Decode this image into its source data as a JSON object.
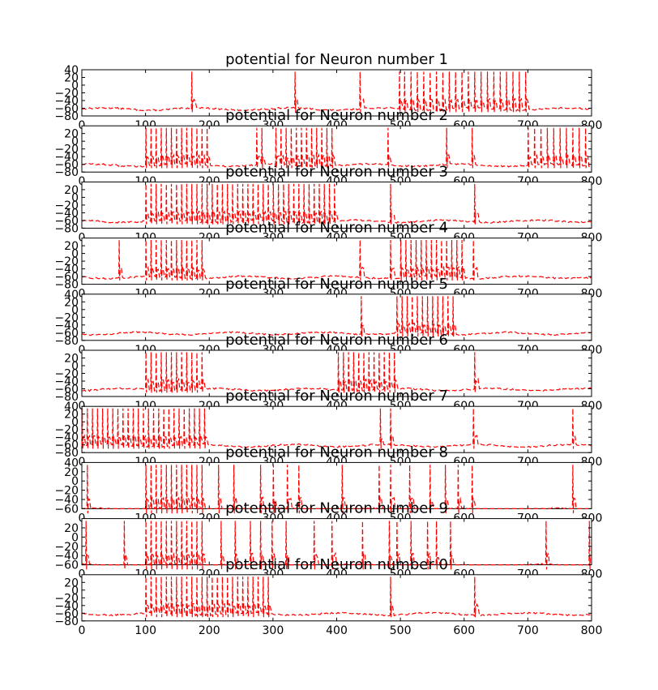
{
  "chart_data": [
    {
      "type": "line",
      "title": "potential for Neuron number 1",
      "xlim": [
        0,
        800
      ],
      "ylim": [
        -80,
        40
      ],
      "xticks": [
        0,
        100,
        200,
        300,
        400,
        500,
        600,
        700,
        800
      ],
      "yticks": [
        -80,
        -60,
        -40,
        -20,
        0,
        20,
        40
      ],
      "color": "#ff0000",
      "spike_times": [
        173,
        334,
        437,
        498,
        506,
        516,
        526,
        536,
        546,
        556,
        566,
        576,
        586,
        596,
        606,
        616,
        626,
        636,
        646,
        656,
        666,
        676,
        686,
        696
      ]
    },
    {
      "type": "line",
      "title": "potential for Neuron number 2",
      "xlim": [
        0,
        800
      ],
      "ylim": [
        -80,
        40
      ],
      "xticks": [
        0,
        100,
        200,
        300,
        400,
        500,
        600,
        700,
        800
      ],
      "yticks": [
        -80,
        -60,
        -40,
        -20,
        0,
        20
      ],
      "color": "#ff0000",
      "spike_times": [
        100,
        108,
        116,
        124,
        132,
        140,
        148,
        156,
        164,
        172,
        180,
        188,
        196,
        275,
        282,
        305,
        312,
        320,
        328,
        336,
        344,
        352,
        360,
        368,
        376,
        384,
        392,
        480,
        572,
        612,
        700,
        710,
        720,
        730,
        740,
        750,
        760,
        770,
        780,
        790
      ]
    },
    {
      "type": "line",
      "title": "potential for Neuron number 3",
      "xlim": [
        0,
        800
      ],
      "ylim": [
        -80,
        40
      ],
      "xticks": [
        0,
        100,
        200,
        300,
        400,
        500,
        600,
        700,
        800
      ],
      "yticks": [
        -80,
        -60,
        -40,
        -20,
        0,
        20
      ],
      "color": "#ff0000",
      "spike_times": [
        100,
        108,
        116,
        124,
        132,
        140,
        148,
        156,
        164,
        172,
        180,
        188,
        196,
        204,
        212,
        220,
        228,
        236,
        244,
        252,
        260,
        268,
        276,
        284,
        292,
        300,
        308,
        316,
        324,
        332,
        340,
        348,
        356,
        364,
        372,
        380,
        388,
        396,
        485,
        617
      ]
    },
    {
      "type": "line",
      "title": "potential for Neuron number 4",
      "xlim": [
        0,
        800
      ],
      "ylim": [
        -80,
        40
      ],
      "xticks": [
        0,
        100,
        200,
        300,
        400,
        500,
        600,
        700,
        800
      ],
      "yticks": [
        -80,
        -60,
        -40,
        -20,
        0,
        20
      ],
      "color": "#ff0000",
      "spike_times": [
        58,
        100,
        108,
        116,
        124,
        132,
        140,
        148,
        156,
        164,
        172,
        180,
        188,
        437,
        485,
        500,
        508,
        516,
        524,
        532,
        540,
        548,
        556,
        564,
        572,
        580,
        588,
        596,
        615
      ]
    },
    {
      "type": "line",
      "title": "potential for Neuron number 5",
      "xlim": [
        0,
        800
      ],
      "ylim": [
        -80,
        40
      ],
      "xticks": [
        0,
        100,
        200,
        300,
        400,
        500,
        600,
        700,
        800
      ],
      "yticks": [
        -80,
        -60,
        -40,
        -20,
        0,
        20,
        40
      ],
      "color": "#ff0000",
      "spike_times": [
        438,
        494,
        502,
        510,
        518,
        526,
        534,
        542,
        550,
        558,
        566,
        574,
        582
      ]
    },
    {
      "type": "line",
      "title": "potential for Neuron number 6",
      "xlim": [
        0,
        800
      ],
      "ylim": [
        -80,
        40
      ],
      "xticks": [
        0,
        100,
        200,
        300,
        400,
        500,
        600,
        700,
        800
      ],
      "yticks": [
        -80,
        -60,
        -40,
        -20,
        0,
        20
      ],
      "color": "#ff0000",
      "spike_times": [
        100,
        108,
        116,
        124,
        132,
        140,
        148,
        156,
        164,
        172,
        180,
        188,
        402,
        410,
        418,
        426,
        434,
        442,
        450,
        458,
        466,
        474,
        482,
        490,
        617
      ]
    },
    {
      "type": "line",
      "title": "potential for Neuron number 7",
      "xlim": [
        0,
        800
      ],
      "ylim": [
        -80,
        40
      ],
      "xticks": [
        0,
        100,
        200,
        300,
        400,
        500,
        600,
        700,
        800
      ],
      "yticks": [
        -80,
        -60,
        -40,
        -20,
        0,
        20,
        40
      ],
      "color": "#ff0000",
      "spike_times": [
        0,
        8,
        16,
        24,
        32,
        40,
        48,
        56,
        64,
        72,
        80,
        88,
        96,
        104,
        112,
        120,
        128,
        136,
        144,
        152,
        160,
        168,
        176,
        184,
        192,
        468,
        484,
        615,
        770
      ]
    },
    {
      "type": "line",
      "title": "potential for Neuron number 8",
      "xlim": [
        0,
        800
      ],
      "ylim": [
        -60,
        40
      ],
      "xticks": [
        0,
        100,
        200,
        300,
        400,
        500,
        600,
        700,
        800
      ],
      "yticks": [
        -60,
        -40,
        -20,
        0,
        20,
        40
      ],
      "color": "#ff0000",
      "spike_times": [
        8,
        100,
        108,
        116,
        124,
        132,
        140,
        148,
        156,
        164,
        172,
        180,
        188,
        214,
        238,
        280,
        300,
        323,
        340,
        408,
        466,
        485,
        515,
        546,
        570,
        590,
        612,
        770
      ]
    },
    {
      "type": "line",
      "title": "potential for Neuron number 9",
      "xlim": [
        0,
        800
      ],
      "ylim": [
        -60,
        40
      ],
      "xticks": [
        0,
        100,
        200,
        300,
        400,
        500,
        600,
        700,
        800
      ],
      "yticks": [
        -60,
        -40,
        -20,
        0,
        20
      ],
      "color": "#ff0000",
      "spike_times": [
        6,
        66,
        100,
        108,
        116,
        124,
        132,
        140,
        148,
        156,
        164,
        172,
        180,
        188,
        218,
        240,
        264,
        280,
        298,
        320,
        365,
        393,
        440,
        482,
        494,
        516,
        542,
        556,
        578,
        728,
        796
      ]
    },
    {
      "type": "line",
      "title": "potential for Neuron number 0",
      "xlim": [
        0,
        800
      ],
      "ylim": [
        -80,
        40
      ],
      "xticks": [
        0,
        100,
        200,
        300,
        400,
        500,
        600,
        700,
        800
      ],
      "yticks": [
        -80,
        -60,
        -40,
        -20,
        0,
        20
      ],
      "color": "#ff0000",
      "spike_times": [
        100,
        108,
        116,
        124,
        132,
        140,
        148,
        156,
        164,
        172,
        180,
        188,
        196,
        204,
        212,
        220,
        228,
        236,
        244,
        252,
        260,
        268,
        276,
        284,
        292,
        484,
        617
      ]
    }
  ]
}
